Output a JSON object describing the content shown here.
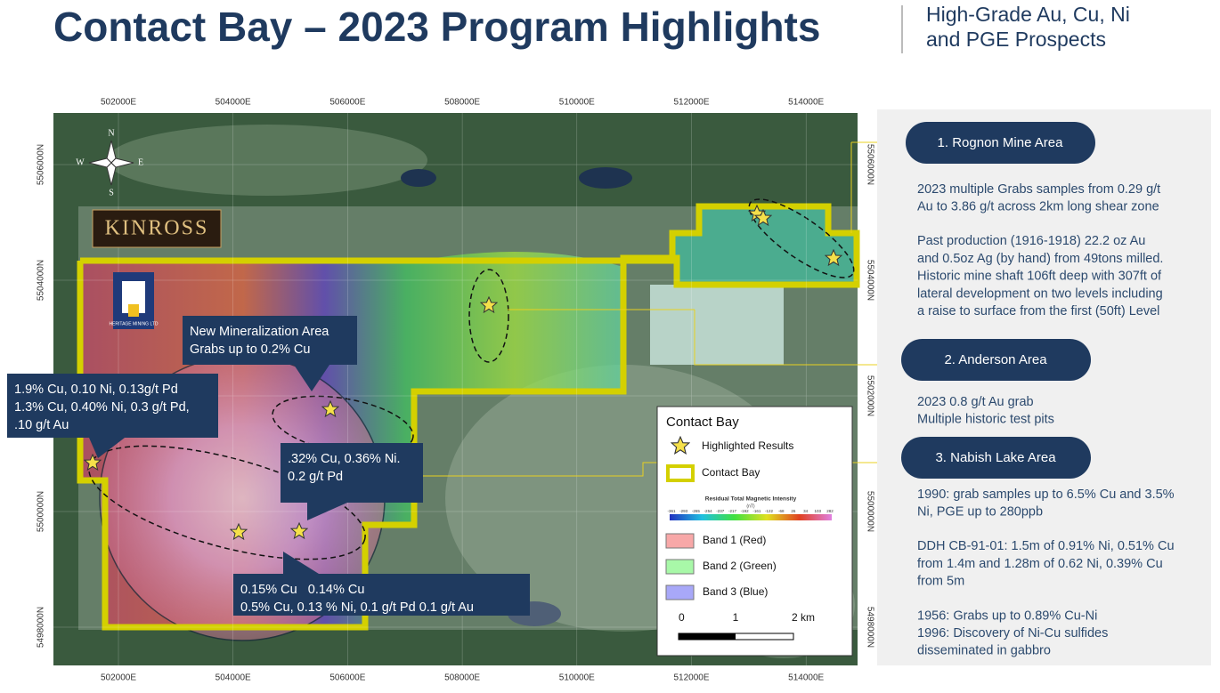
{
  "header": {
    "title": "Contact Bay – 2023 Program Highlights",
    "subtitle": [
      "High-Grade Au, Cu, Ni",
      "and PGE Prospects"
    ]
  },
  "map": {
    "eastings": [
      "502000E",
      "504000E",
      "506000E",
      "508000E",
      "510000E",
      "512000E",
      "514000E"
    ],
    "northings": [
      "5506000N",
      "5504000N",
      "5502000N",
      "5500000N",
      "5498000N"
    ],
    "compass": {
      "n": "N",
      "e": "E",
      "s": "S",
      "w": "W"
    },
    "logos": {
      "kinross": "KINROSS",
      "heritage": "HERITAGE MINING LTD"
    },
    "callouts": [
      {
        "lines": [
          "New Mineralization Area",
          "Grabs up to 0.2% Cu"
        ]
      },
      {
        "lines": [
          "1.9% Cu, 0.10 Ni, 0.13g/t Pd",
          "1.3% Cu, 0.40% Ni, 0.3 g/t Pd,",
          ".10 g/t Au"
        ]
      },
      {
        "lines": [
          ".32% Cu, 0.36% Ni.",
          "0.2 g/t Pd"
        ]
      },
      {
        "lines": [
          "0.15% Cu   0.14% Cu",
          "0.5% Cu, 0.13 % Ni, 0.1 g/t Pd 0.1 g/t Au"
        ]
      }
    ],
    "legend": {
      "title": "Contact Bay",
      "highlighted": "Highlighted Results",
      "boundary": "Contact Bay",
      "colorbar_title": "Residual Total Magnetic Intensity",
      "colorbar_unit": "(nT)",
      "colorbar_ticks": [
        "-361",
        "-293",
        "-265",
        "-254",
        "-237",
        "-217",
        "-192",
        "-161",
        "-122",
        "-68",
        "26",
        "34",
        "103",
        "282"
      ],
      "bands": [
        "Band 1 (Red)",
        "Band 2 (Green)",
        "Band 3 (Blue)"
      ],
      "scale": [
        "0",
        "1",
        "2 km"
      ]
    }
  },
  "areas": [
    {
      "name": "1. Rognon Mine Area",
      "paragraphs": [
        [
          "2023 multiple Grabs samples from 0.29 g/t",
          "Au to 3.86 g/t across 2km long shear zone"
        ],
        [
          "Past production (1916-1918) 22.2 oz Au",
          "and 0.5oz Ag (by hand) from 49tons milled.",
          "Historic mine shaft 106ft deep with 307ft of",
          "lateral development on two levels including",
          "a raise to surface from the first (50ft) Level"
        ]
      ]
    },
    {
      "name": "2. Anderson Area",
      "paragraphs": [
        [
          "2023 0.8 g/t Au grab",
          "Multiple historic test pits"
        ]
      ]
    },
    {
      "name": "3. Nabish Lake Area",
      "paragraphs": [
        [
          "1990: grab samples up to 6.5% Cu and 3.5%",
          "Ni, PGE up to 280ppb"
        ],
        [
          "DDH CB-91-01: 1.5m of 0.91% Ni, 0.51% Cu",
          "from 1.4m and 1.28m of 0.62 Ni, 0.39% Cu",
          "from 5m"
        ],
        [
          "1956: Grabs up to 0.89% Cu-Ni",
          "1996: Discovery of Ni-Cu sulfides",
          "disseminated in gabbro"
        ]
      ]
    }
  ]
}
